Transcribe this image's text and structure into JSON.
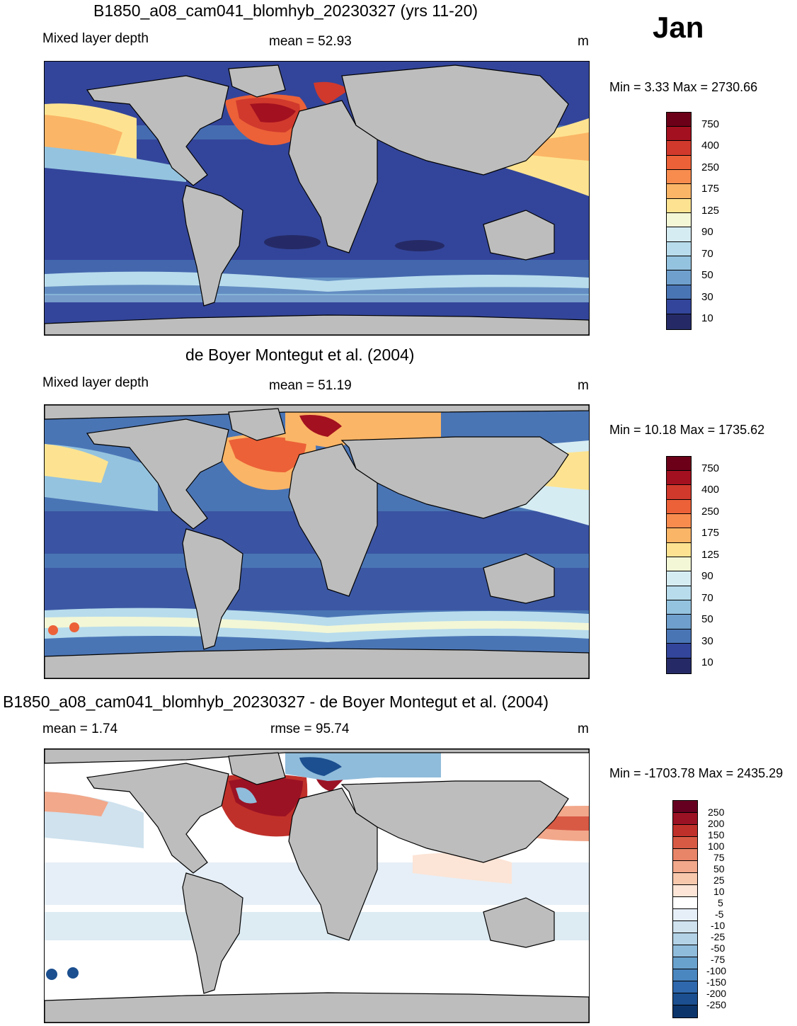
{
  "header": {
    "main_title": "B1850_a08_cam041_blomhyb_20230327 (yrs 11-20)",
    "month": "Jan"
  },
  "panel1": {
    "left_label": "Mixed layer depth",
    "center_label": "mean =  52.93",
    "units": "m",
    "minmax": "Min =   3.33 Max = 2730.66",
    "colorbar_ticks": [
      "750",
      "400",
      "250",
      "175",
      "125",
      "90",
      "70",
      "50",
      "30",
      "10"
    ]
  },
  "panel2": {
    "title": "de Boyer Montegut et al. (2004)",
    "left_label": "Mixed layer depth",
    "center_label": "mean =  51.19",
    "units": "m",
    "minmax": "Min =  10.18 Max = 1735.62",
    "colorbar_ticks": [
      "750",
      "400",
      "250",
      "175",
      "125",
      "90",
      "70",
      "50",
      "30",
      "10"
    ]
  },
  "panel3": {
    "title": "B1850_a08_cam041_blomhyb_20230327 - de Boyer Montegut et al. (2004)",
    "left_label": "mean =   1.74",
    "center_label": "rmse =  95.74",
    "units": "m",
    "minmax": "Min = -1703.78 Max = 2435.29",
    "colorbar_ticks": [
      "250",
      "200",
      "150",
      "100",
      "75",
      "50",
      "25",
      "10",
      "5",
      "-5",
      "-10",
      "-25",
      "-50",
      "-75",
      "-100",
      "-150",
      "-200",
      "-250"
    ]
  },
  "colors": {
    "land": "#bdbdbd",
    "mld_scale": [
      "#6b0018",
      "#a3101f",
      "#d0392c",
      "#ec6138",
      "#f88c4f",
      "#fbb566",
      "#fde391",
      "#f3f7d6",
      "#d6ecf3",
      "#b8dcec",
      "#94c3df",
      "#6f9fcc",
      "#4a75b5",
      "#33459a",
      "#252a66"
    ],
    "diff_scale": [
      "#660020",
      "#9b1224",
      "#c0302a",
      "#d85a45",
      "#e88468",
      "#f2a88b",
      "#f8c8ad",
      "#fce4d6",
      "#ffffff",
      "#e6eff7",
      "#cfe2ee",
      "#b3d2e6",
      "#90bcdb",
      "#6aa2ce",
      "#4a86c0",
      "#2f68ac",
      "#1b4f8f",
      "#0c356b"
    ]
  }
}
